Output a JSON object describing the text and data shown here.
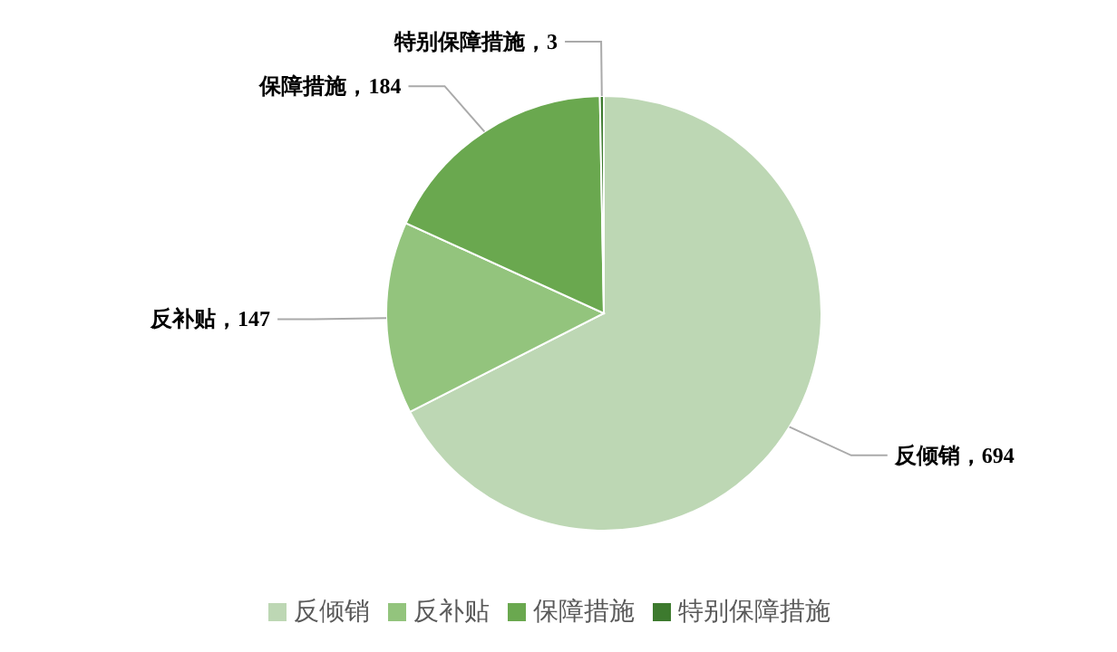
{
  "chart_data": {
    "type": "pie",
    "categories": [
      "反倾销",
      "反补贴",
      "保障措施",
      "特别保障措施"
    ],
    "values": [
      694,
      147,
      184,
      3
    ],
    "colors": [
      "#bdd7b4",
      "#93c47d",
      "#6aa84f",
      "#3d7a2e"
    ],
    "value_labels": [
      "反倾销，694",
      "反补贴，147",
      "保障措施，184",
      "特别保障措施，3"
    ],
    "legend": "bottom"
  }
}
